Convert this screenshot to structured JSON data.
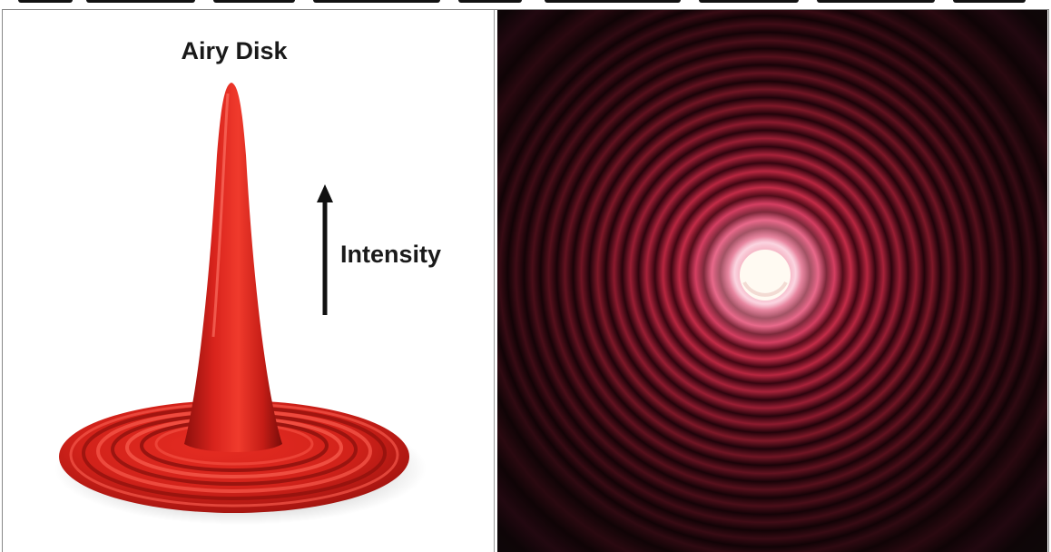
{
  "left_panel": {
    "title": "Airy Disk",
    "axis_label": "Intensity",
    "illustration": "airy-disk-3d-intensity-profile",
    "color": "#d8231c"
  },
  "right_panel": {
    "illustration": "airy-diffraction-ring-pattern",
    "ring_color": "#b01a32",
    "center_color": "#fff6e6",
    "background_color": "#0e0909"
  }
}
